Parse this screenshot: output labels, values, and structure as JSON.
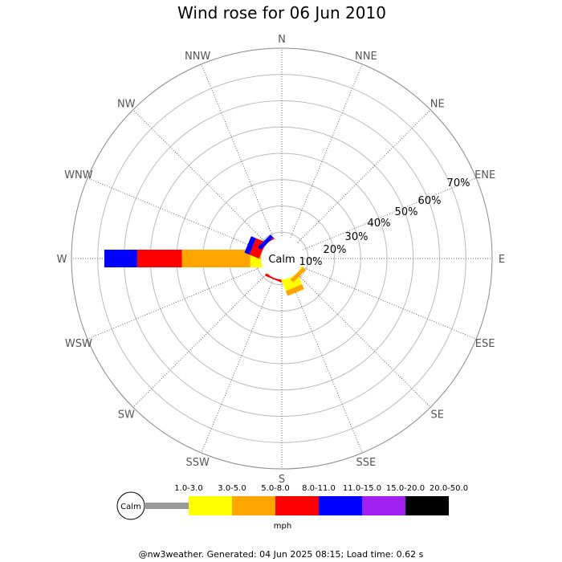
{
  "title": "Wind rose for 06 Jun 2010",
  "calm_label": "Calm",
  "unit": "mph",
  "footer": "@nw3weather. Generated: 04 Jun 2025 08:15; Load time: 0.62 s",
  "chart_data": {
    "type": "wind-rose",
    "title": "Wind rose for 06 Jun 2010",
    "directions": [
      "N",
      "NNE",
      "NE",
      "ENE",
      "E",
      "ESE",
      "SE",
      "SSE",
      "S",
      "SSW",
      "SW",
      "WSW",
      "W",
      "WNW",
      "NW",
      "NNW"
    ],
    "ring_labels": [
      "10%",
      "20%",
      "30%",
      "40%",
      "50%",
      "60%",
      "70%"
    ],
    "rmax_percent": 80,
    "speed_bins": [
      {
        "label": "1.0-3.0",
        "color": "#999999"
      },
      {
        "label": "3.0-5.0",
        "color": "#ffff00"
      },
      {
        "label": "5.0-8.0",
        "color": "#ffa500"
      },
      {
        "label": "8.0-11.0",
        "color": "#ff0000"
      },
      {
        "label": "11.0-15.0",
        "color": "#0000ff"
      },
      {
        "label": "15.0-20.0",
        "color": "#a020f0"
      },
      {
        "label": "20.0-50.0",
        "color": "#000000"
      }
    ],
    "unit": "mph",
    "cumulative_percent": {
      "W": [
        5.5,
        12,
        38,
        55,
        67.5
      ],
      "WNW": [
        5.5,
        5.5,
        8,
        12,
        14
      ],
      "NW": [
        5.5,
        5.5,
        5.5,
        8,
        9.5
      ],
      "NNW": [
        5.5,
        5.5,
        5.5,
        5.5,
        5.5
      ],
      "S": [
        6.5,
        6.5,
        6.5,
        6.5,
        6.5
      ],
      "SSW": [
        5.5,
        7.5,
        7.5,
        8.5,
        8.5
      ],
      "SSE": [
        5.5,
        12,
        14,
        14,
        14
      ],
      "SE": [
        5.5,
        8,
        9.5,
        9.5,
        9.5
      ],
      "SW": [
        5.5,
        7,
        7,
        7,
        7
      ],
      "WSW": [
        5.5,
        7,
        7,
        7,
        7
      ]
    }
  }
}
